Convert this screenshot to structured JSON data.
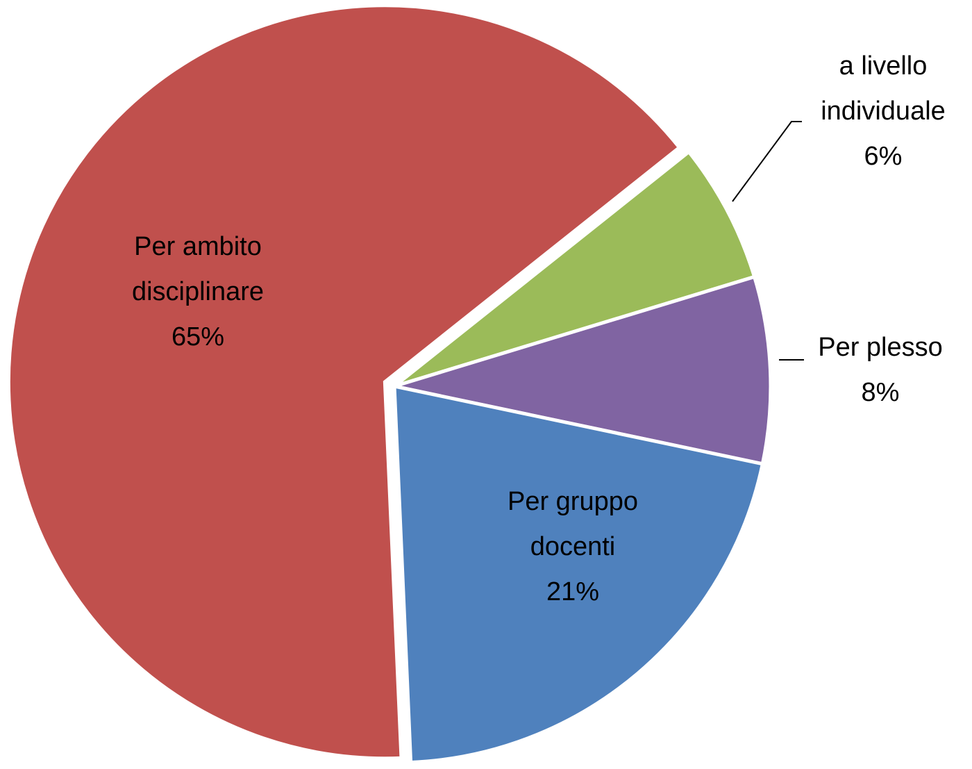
{
  "chart_data": {
    "type": "pie",
    "categories": [
      "a livello individuale",
      "Per plesso",
      "Per gruppo docenti",
      "Per ambito disciplinare"
    ],
    "values": [
      6,
      8,
      21,
      65
    ],
    "value_labels": [
      "6%",
      "8%",
      "21%",
      "65%"
    ],
    "colors": [
      "#9bbb59",
      "#8064a2",
      "#4f81bd",
      "#c0504d"
    ]
  }
}
